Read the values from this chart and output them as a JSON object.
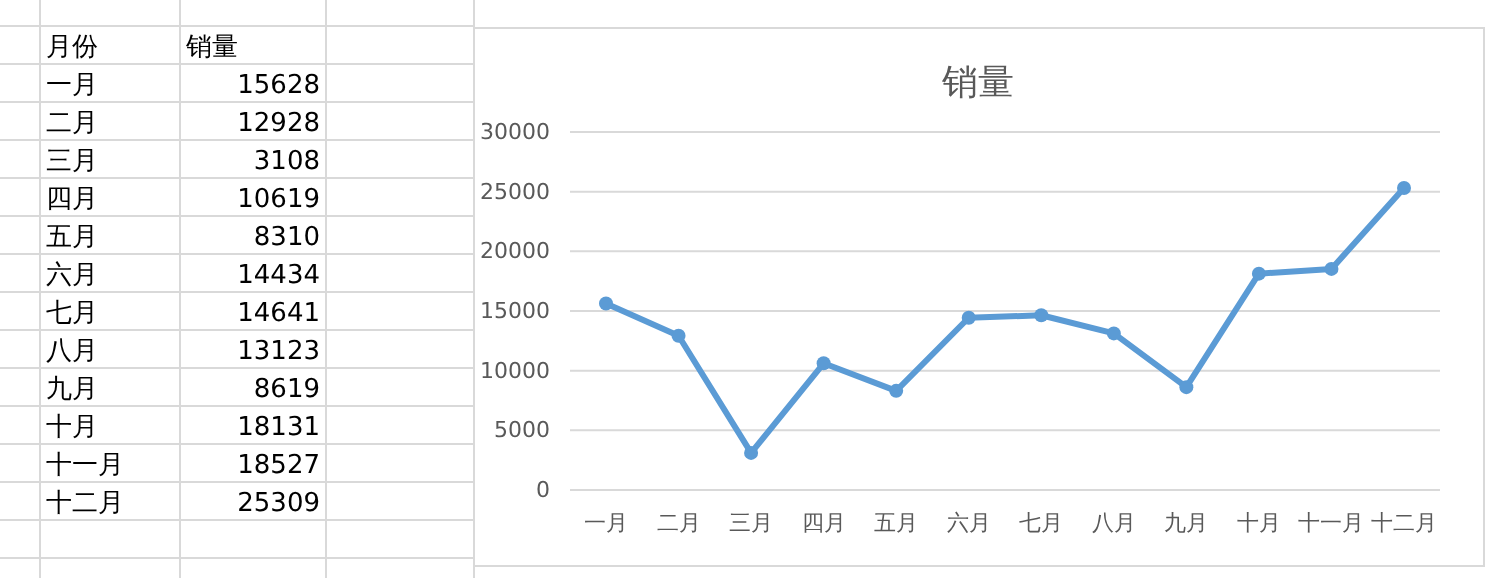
{
  "chart_data": [
    {
      "type": "other",
      "annotations": [
        "月份",
        "销量"
      ],
      "categories": [
        "一月",
        "二月",
        "三月",
        "四月",
        "五月",
        "六月",
        "七月",
        "八月",
        "九月",
        "十月",
        "十一月",
        "十二月"
      ],
      "values": [
        15628,
        12928,
        3108,
        10619,
        8310,
        14434,
        14641,
        13123,
        8619,
        18131,
        18527,
        25309
      ],
      "data_labels": true
    },
    {
      "type": "line",
      "title": "销量",
      "categories": [
        "一月",
        "二月",
        "三月",
        "四月",
        "五月",
        "六月",
        "七月",
        "八月",
        "九月",
        "十月",
        "十一月",
        "十二月"
      ],
      "series": [
        {
          "color": "#5b9bd5",
          "values": [
            15628,
            12928,
            3108,
            10619,
            8310,
            14434,
            14641,
            13123,
            8619,
            18131,
            18527,
            25309
          ]
        }
      ],
      "ylim": [
        0,
        30000
      ],
      "yticks": [
        0,
        5000,
        10000,
        15000,
        20000,
        25000,
        30000
      ],
      "grid": "y",
      "marker": "circle",
      "line_style": "solid"
    }
  ]
}
